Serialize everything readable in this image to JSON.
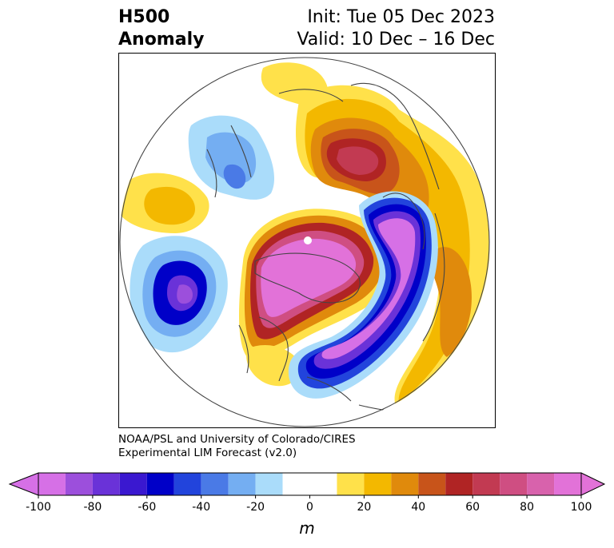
{
  "header": {
    "variable_line1": "H500",
    "variable_line2": "Anomaly",
    "init_text": "Init: Tue 05 Dec 2023",
    "valid_text": "Valid: 10 Dec – 16 Dec"
  },
  "credit": {
    "line1": "NOAA/PSL and University of Colorado/CIRES",
    "line2": "Experimental LIM Forecast (v2.0)"
  },
  "colorbar": {
    "unit": "m",
    "ticks": [
      "-100",
      "-80",
      "-60",
      "-40",
      "-20",
      "0",
      "20",
      "40",
      "60",
      "80",
      "100"
    ],
    "levels": [
      -100,
      -90,
      -80,
      -70,
      -60,
      -50,
      -40,
      -30,
      -20,
      -10,
      10,
      20,
      30,
      40,
      50,
      60,
      70,
      80,
      90,
      100
    ],
    "colors": [
      "#d670e6",
      "#9c4fdc",
      "#6a32d8",
      "#3a18d0",
      "#0000c8",
      "#2244dc",
      "#4a7ae6",
      "#74aef2",
      "#aadcfa",
      "#ffffff",
      "#ffe14a",
      "#f3b800",
      "#e08a0c",
      "#c8541a",
      "#b02424",
      "#c23a52",
      "#cf4e82",
      "#d862ac",
      "#e272d8",
      "#d670e6"
    ],
    "extend_low_color": "#d670e6",
    "extend_high_color": "#e272d8"
  },
  "map": {
    "projection": "north-polar-stereographic",
    "region": "Northern Hemisphere"
  }
}
